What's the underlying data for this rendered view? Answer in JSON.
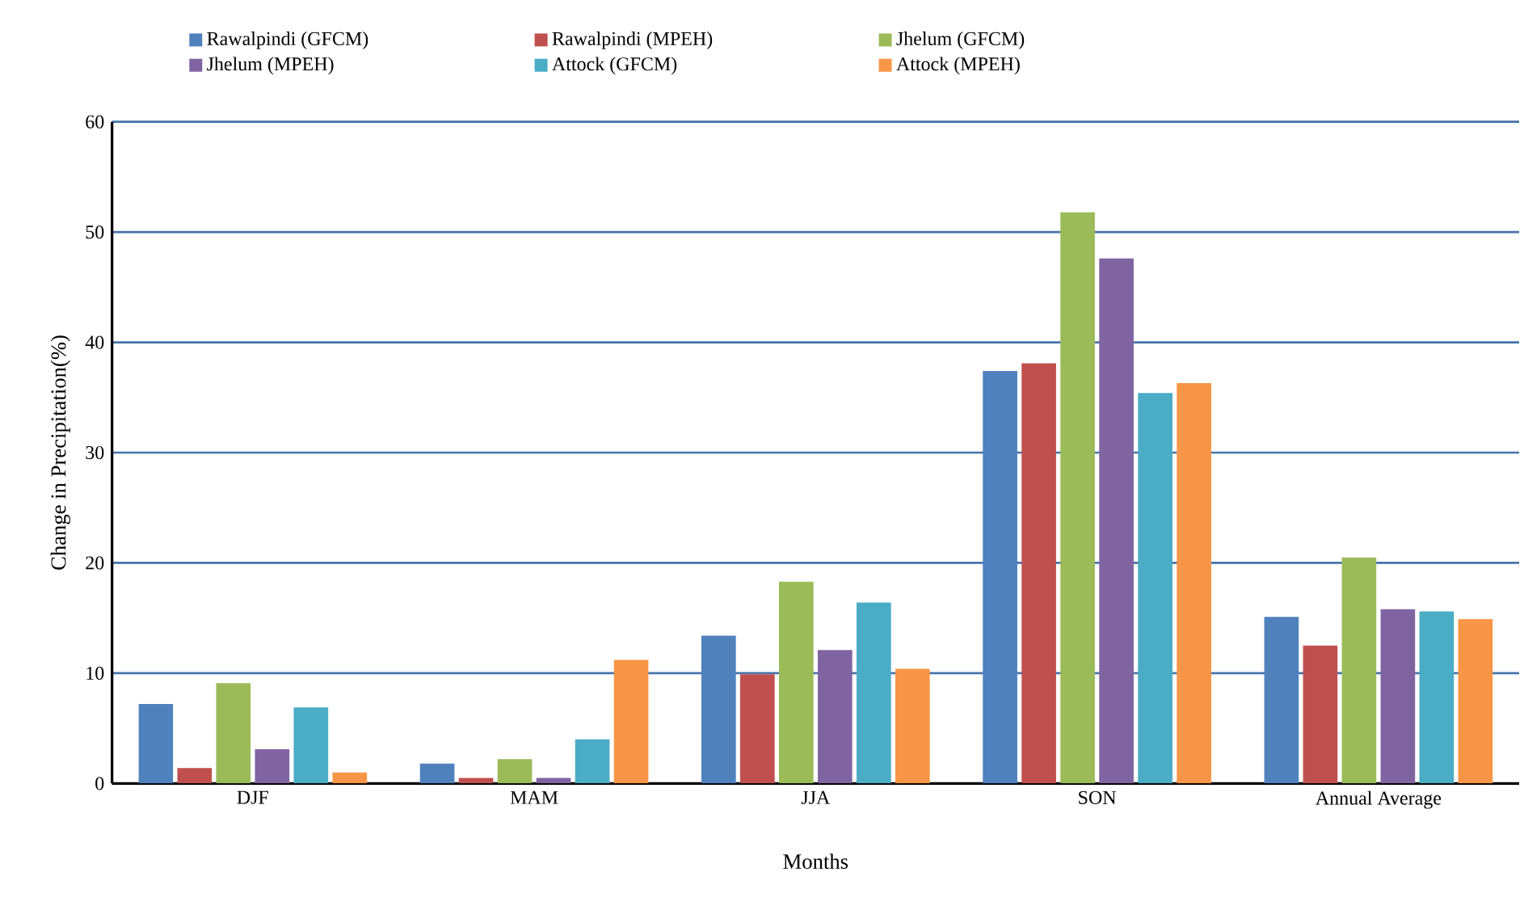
{
  "chart_data": {
    "type": "bar",
    "xlabel": "Months",
    "ylabel": "Change in Precipitation(%)",
    "categories": [
      "DJF",
      "MAM",
      "JJA",
      "SON",
      "Annual Average"
    ],
    "series": [
      {
        "name": "Rawalpindi (GFCM)",
        "color": "#4f81bd",
        "values": [
          7.2,
          1.8,
          13.4,
          37.4,
          15.1
        ]
      },
      {
        "name": "Rawalpindi (MPEH)",
        "color": "#c0504d",
        "values": [
          1.4,
          0.5,
          9.9,
          38.1,
          12.5
        ]
      },
      {
        "name": "Jhelum  (GFCM)",
        "color": "#9bbb59",
        "values": [
          9.1,
          2.2,
          18.3,
          51.8,
          20.5
        ]
      },
      {
        "name": "Jhelum (MPEH)",
        "color": "#8064a2",
        "values": [
          3.1,
          0.5,
          12.1,
          47.6,
          15.8
        ]
      },
      {
        "name": "Attock  (GFCM)",
        "color": "#4bacc6",
        "values": [
          6.9,
          4.0,
          16.4,
          35.4,
          15.6
        ]
      },
      {
        "name": "Attock (MPEH)",
        "color": "#f79646",
        "values": [
          1.0,
          11.2,
          10.4,
          36.3,
          14.9
        ]
      }
    ],
    "ylim": [
      0,
      60
    ],
    "yticks": [
      0,
      10,
      20,
      30,
      40,
      50,
      60
    ],
    "grid": "y",
    "legend": "top"
  }
}
